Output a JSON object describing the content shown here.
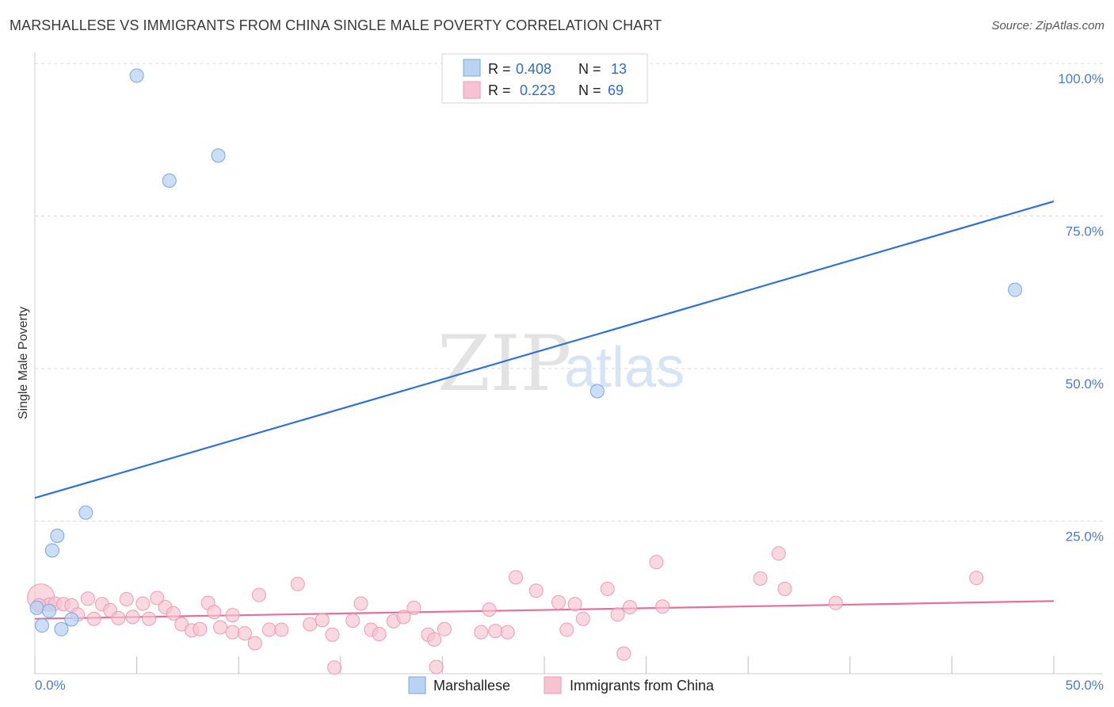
{
  "header": {
    "title": "MARSHALLESE VS IMMIGRANTS FROM CHINA SINGLE MALE POVERTY CORRELATION CHART",
    "source": "Source: ZipAtlas.com"
  },
  "watermark": {
    "zip": "ZIP",
    "atlas": "atlas"
  },
  "colors": {
    "blue_fill": "#b9d3f2",
    "blue_stroke": "#7aa7de",
    "blue_line": "#2f73cf",
    "pink_fill": "#f7c3d3",
    "pink_stroke": "#ec9ab4",
    "pink_line": "#e5709a",
    "grid": "#d8d8d8",
    "tick_text": "#4a7cc7"
  },
  "legend": {
    "rows": [
      {
        "r_label": "R =",
        "r_value": "0.408",
        "n_label": "N =",
        "n_value": "13"
      },
      {
        "r_label": "R =",
        "r_value": "0.223",
        "n_label": "N =",
        "n_value": "69"
      }
    ]
  },
  "chart_data": {
    "type": "scatter",
    "title": "MARSHALLESE VS IMMIGRANTS FROM CHINA SINGLE MALE POVERTY CORRELATION CHART",
    "xlabel": "",
    "ylabel": "Single Male Poverty",
    "xlim": [
      0,
      50
    ],
    "ylim": [
      0,
      100
    ],
    "x_tick_labels": [
      "0.0%",
      "50.0%"
    ],
    "y_tick_labels": [
      "25.0%",
      "50.0%",
      "75.0%",
      "100.0%"
    ],
    "y_ticks": [
      25,
      50,
      75,
      100
    ],
    "grid": true,
    "legend_position": "top-center",
    "series": [
      {
        "name": "Marshallese",
        "R": 0.408,
        "N": 13,
        "trend": {
          "x": [
            0,
            50
          ],
          "y": [
            28.8,
            77.4
          ]
        },
        "points": [
          {
            "x": 0.1,
            "y": 10.8
          },
          {
            "x": 0.35,
            "y": 7.9
          },
          {
            "x": 0.7,
            "y": 10.3
          },
          {
            "x": 0.85,
            "y": 20.2
          },
          {
            "x": 1.1,
            "y": 22.6
          },
          {
            "x": 1.3,
            "y": 7.3
          },
          {
            "x": 1.8,
            "y": 8.9
          },
          {
            "x": 2.5,
            "y": 26.4
          },
          {
            "x": 5.0,
            "y": 98.0
          },
          {
            "x": 6.6,
            "y": 80.8
          },
          {
            "x": 9.0,
            "y": 84.9
          },
          {
            "x": 27.6,
            "y": 46.3
          },
          {
            "x": 48.1,
            "y": 62.9
          }
        ]
      },
      {
        "name": "Immigrants from China",
        "R": 0.223,
        "N": 69,
        "trend": {
          "x": [
            0,
            50
          ],
          "y": [
            9.0,
            11.9
          ]
        },
        "points": [
          {
            "x": 0.3,
            "y": 12.5,
            "big": true
          },
          {
            "x": 0.7,
            "y": 11.3
          },
          {
            "x": 1.0,
            "y": 11.5
          },
          {
            "x": 1.4,
            "y": 11.4
          },
          {
            "x": 1.8,
            "y": 11.2
          },
          {
            "x": 2.1,
            "y": 9.7
          },
          {
            "x": 2.6,
            "y": 12.3
          },
          {
            "x": 2.9,
            "y": 9.0
          },
          {
            "x": 3.3,
            "y": 11.4
          },
          {
            "x": 3.7,
            "y": 10.4
          },
          {
            "x": 4.1,
            "y": 9.1
          },
          {
            "x": 4.5,
            "y": 12.2
          },
          {
            "x": 4.8,
            "y": 9.3
          },
          {
            "x": 5.3,
            "y": 11.5
          },
          {
            "x": 5.6,
            "y": 9.0
          },
          {
            "x": 6.0,
            "y": 12.4
          },
          {
            "x": 6.4,
            "y": 10.9
          },
          {
            "x": 6.8,
            "y": 9.9
          },
          {
            "x": 7.2,
            "y": 8.1
          },
          {
            "x": 7.7,
            "y": 7.1
          },
          {
            "x": 8.1,
            "y": 7.3
          },
          {
            "x": 8.5,
            "y": 11.6
          },
          {
            "x": 8.8,
            "y": 10.1
          },
          {
            "x": 9.1,
            "y": 7.6
          },
          {
            "x": 9.7,
            "y": 9.6
          },
          {
            "x": 9.7,
            "y": 6.8
          },
          {
            "x": 10.3,
            "y": 6.6
          },
          {
            "x": 10.8,
            "y": 5.0
          },
          {
            "x": 11.0,
            "y": 12.9
          },
          {
            "x": 11.5,
            "y": 7.2
          },
          {
            "x": 12.1,
            "y": 7.2
          },
          {
            "x": 12.9,
            "y": 14.7
          },
          {
            "x": 13.5,
            "y": 8.1
          },
          {
            "x": 14.1,
            "y": 8.8
          },
          {
            "x": 14.6,
            "y": 6.4
          },
          {
            "x": 14.7,
            "y": 1.0
          },
          {
            "x": 15.6,
            "y": 8.7
          },
          {
            "x": 16.0,
            "y": 11.5
          },
          {
            "x": 16.5,
            "y": 7.2
          },
          {
            "x": 16.9,
            "y": 6.5
          },
          {
            "x": 17.6,
            "y": 8.6
          },
          {
            "x": 18.1,
            "y": 9.3
          },
          {
            "x": 18.6,
            "y": 10.8
          },
          {
            "x": 19.3,
            "y": 6.4
          },
          {
            "x": 19.6,
            "y": 5.6
          },
          {
            "x": 19.7,
            "y": 1.1
          },
          {
            "x": 20.1,
            "y": 7.3
          },
          {
            "x": 21.9,
            "y": 6.8
          },
          {
            "x": 22.3,
            "y": 10.5
          },
          {
            "x": 22.6,
            "y": 7.0
          },
          {
            "x": 23.2,
            "y": 6.8
          },
          {
            "x": 23.6,
            "y": 15.8
          },
          {
            "x": 24.6,
            "y": 13.6
          },
          {
            "x": 25.7,
            "y": 11.7
          },
          {
            "x": 26.1,
            "y": 7.2
          },
          {
            "x": 26.5,
            "y": 11.4
          },
          {
            "x": 26.9,
            "y": 9.0
          },
          {
            "x": 28.1,
            "y": 13.9
          },
          {
            "x": 28.6,
            "y": 9.7
          },
          {
            "x": 28.9,
            "y": 3.3
          },
          {
            "x": 29.2,
            "y": 10.9
          },
          {
            "x": 30.5,
            "y": 18.3
          },
          {
            "x": 30.8,
            "y": 11.0
          },
          {
            "x": 35.6,
            "y": 15.6
          },
          {
            "x": 36.5,
            "y": 19.7
          },
          {
            "x": 36.8,
            "y": 13.9
          },
          {
            "x": 39.3,
            "y": 11.6
          },
          {
            "x": 46.2,
            "y": 15.7
          },
          {
            "x": 0.2,
            "y": 11.2
          }
        ]
      }
    ]
  }
}
